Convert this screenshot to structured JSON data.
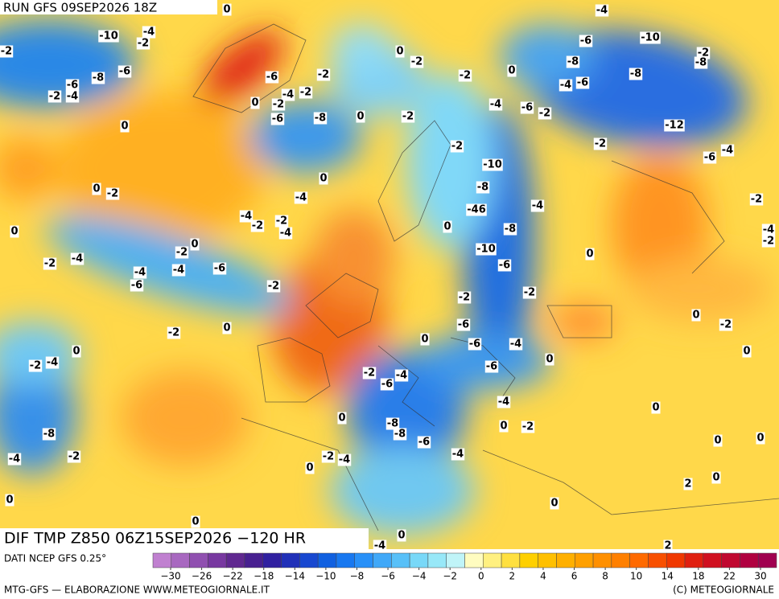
{
  "header": {
    "run": "RUN GFS 09SEP2026 18Z",
    "field": "DIF TMP Z850 06Z15SEP2026 −120 HR"
  },
  "footer": {
    "source": "DATI NCEP GFS 0.25°",
    "credit": "MTG-GFS — ELABORAZIONE WWW.METEOGIORNALE.IT",
    "copyright": "(C) METEOGIORNALE"
  },
  "colorbar": {
    "colors": [
      "#c080d0",
      "#a868c0",
      "#9050b0",
      "#7838a0",
      "#602890",
      "#482090",
      "#3020a0",
      "#2030b8",
      "#1848d0",
      "#1060e0",
      "#1878f0",
      "#2890f8",
      "#40a8f8",
      "#58c0f8",
      "#78d8f8",
      "#98e8f8",
      "#c0f4f8",
      "#fffcc0",
      "#fff080",
      "#ffe040",
      "#ffd000",
      "#ffc000",
      "#ffb000",
      "#ffa000",
      "#ff9000",
      "#ff8000",
      "#ff6a00",
      "#f85000",
      "#f03800",
      "#e02010",
      "#d01020",
      "#c00830",
      "#b00040",
      "#a00050"
    ],
    "ticks": [
      {
        "value": -30,
        "label": "−30"
      },
      {
        "value": -26,
        "label": "−26"
      },
      {
        "value": -22,
        "label": "−22"
      },
      {
        "value": -18,
        "label": "−18"
      },
      {
        "value": -14,
        "label": "−14"
      },
      {
        "value": -10,
        "label": "−10"
      },
      {
        "value": -8,
        "label": "−8"
      },
      {
        "value": -6,
        "label": "−6"
      },
      {
        "value": -4,
        "label": "−4"
      },
      {
        "value": -2,
        "label": "−2"
      },
      0,
      2,
      4,
      6,
      8,
      10,
      14,
      18,
      22,
      30
    ]
  },
  "contour_labels": [
    0,
    -4,
    -10,
    -4,
    -2,
    -2,
    -6,
    -10,
    -2,
    -8,
    0,
    -2,
    -8,
    -6,
    -8,
    -6,
    -2,
    -2,
    0,
    -8,
    -6,
    -4,
    -2,
    -4,
    -6,
    -4,
    -2,
    0,
    -2,
    -4,
    -6,
    -2,
    -8,
    -6,
    0,
    -2,
    0,
    -12,
    -2,
    -2,
    -10,
    -6,
    -4,
    0,
    -8,
    -4,
    0,
    -2,
    -2,
    -46,
    -4,
    -4,
    -2,
    -2,
    -4,
    0,
    0,
    -8,
    -4,
    -2,
    -10,
    -2,
    0,
    -4,
    -2,
    -6,
    0,
    -4,
    -4,
    -6,
    -6,
    -2,
    -2,
    -2,
    0,
    -2,
    -6,
    -2,
    0,
    0,
    -6,
    -4,
    0,
    0,
    0,
    -2,
    -4,
    -6,
    -2,
    -4,
    -6,
    -4,
    0,
    0,
    -8,
    -8,
    -6,
    0,
    -2,
    -8,
    -2,
    -4,
    -4,
    -4,
    -2,
    0,
    0,
    0,
    2,
    0,
    0,
    0,
    0,
    0,
    -4,
    2
  ]
}
